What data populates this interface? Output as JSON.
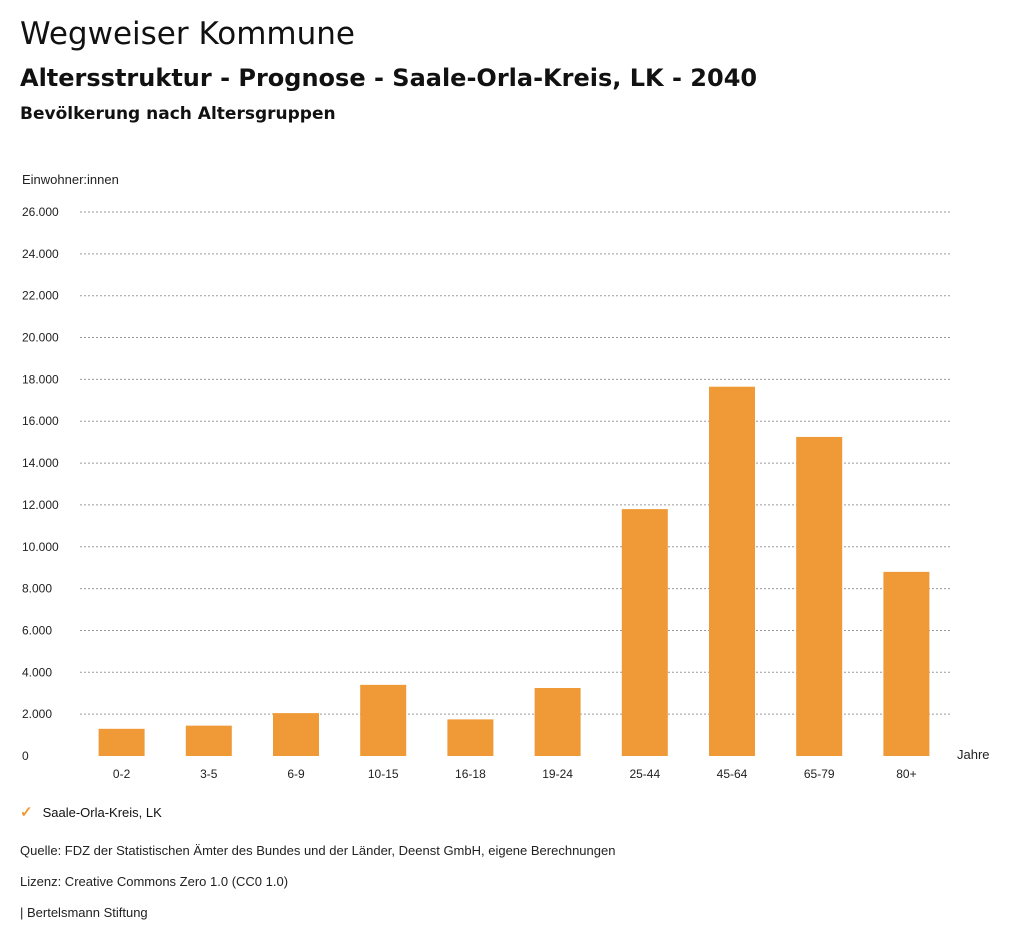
{
  "header": {
    "title": "Wegweiser Kommune",
    "subtitle": "Altersstruktur - Prognose - Saale-Orla-Kreis, LK - 2040",
    "heading": "Bevölkerung nach Altersgruppen"
  },
  "chart_data": {
    "type": "bar",
    "ylabel": "Einwohner:innen",
    "xlabel": "Jahre",
    "ylim": [
      0,
      26000
    ],
    "yticks": [
      0,
      2000,
      4000,
      6000,
      8000,
      10000,
      12000,
      14000,
      16000,
      18000,
      20000,
      22000,
      24000,
      26000
    ],
    "ytick_labels": [
      "0",
      "2.000",
      "4.000",
      "6.000",
      "8.000",
      "10.000",
      "12.000",
      "14.000",
      "16.000",
      "18.000",
      "20.000",
      "22.000",
      "24.000",
      "26.000"
    ],
    "categories": [
      "0-2",
      "3-5",
      "6-9",
      "10-15",
      "16-18",
      "19-24",
      "25-44",
      "45-64",
      "65-79",
      "80+"
    ],
    "series": [
      {
        "name": "Saale-Orla-Kreis, LK",
        "values": [
          1300,
          1450,
          2050,
          3400,
          1750,
          3250,
          11800,
          17650,
          15250,
          8800
        ]
      }
    ],
    "grid": true,
    "grid_style": "dotted",
    "legend_position": "bottom-left",
    "colors": {
      "bar": "#ef9a36"
    }
  },
  "legend": {
    "icon": "check-icon",
    "label": "Saale-Orla-Kreis, LK"
  },
  "footer": {
    "source": "Quelle: FDZ der Statistischen Ämter des Bundes und der Länder, Deenst GmbH, eigene Berechnungen",
    "license": "Lizenz: Creative Commons Zero 1.0 (CC0 1.0)",
    "publisher": "| Bertelsmann Stiftung"
  }
}
